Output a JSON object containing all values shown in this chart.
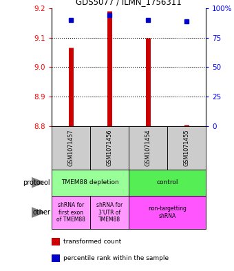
{
  "title": "GDS5077 / ILMN_1756311",
  "samples": [
    "GSM1071457",
    "GSM1071456",
    "GSM1071454",
    "GSM1071455"
  ],
  "red_values": [
    9.065,
    9.19,
    9.1,
    8.805
  ],
  "blue_values": [
    9.16,
    9.175,
    9.16,
    9.155
  ],
  "ylim_left": [
    8.8,
    9.2
  ],
  "yticks_left": [
    8.8,
    8.9,
    9.0,
    9.1,
    9.2
  ],
  "yticks_right": [
    0,
    25,
    50,
    75,
    100
  ],
  "ylim_right": [
    0,
    100
  ],
  "bar_bottom": 8.8,
  "bar_color": "#cc0000",
  "dot_color": "#0000cc",
  "sample_bg": "#cccccc",
  "protocol_groups": [
    {
      "label": "TMEM88 depletion",
      "cols": [
        0,
        1
      ],
      "color": "#99ff99"
    },
    {
      "label": "control",
      "cols": [
        2,
        3
      ],
      "color": "#55ee55"
    }
  ],
  "other_groups": [
    {
      "label": "shRNA for\nfirst exon\nof TMEM88",
      "cols": [
        0
      ],
      "color": "#ff99ff"
    },
    {
      "label": "shRNA for\n3'UTR of\nTMEM88",
      "cols": [
        1
      ],
      "color": "#ff99ff"
    },
    {
      "label": "non-targetting\nshRNA",
      "cols": [
        2,
        3
      ],
      "color": "#ff55ff"
    }
  ],
  "legend_items": [
    {
      "color": "#cc0000",
      "label": "transformed count"
    },
    {
      "color": "#0000cc",
      "label": "percentile rank within the sample"
    }
  ]
}
